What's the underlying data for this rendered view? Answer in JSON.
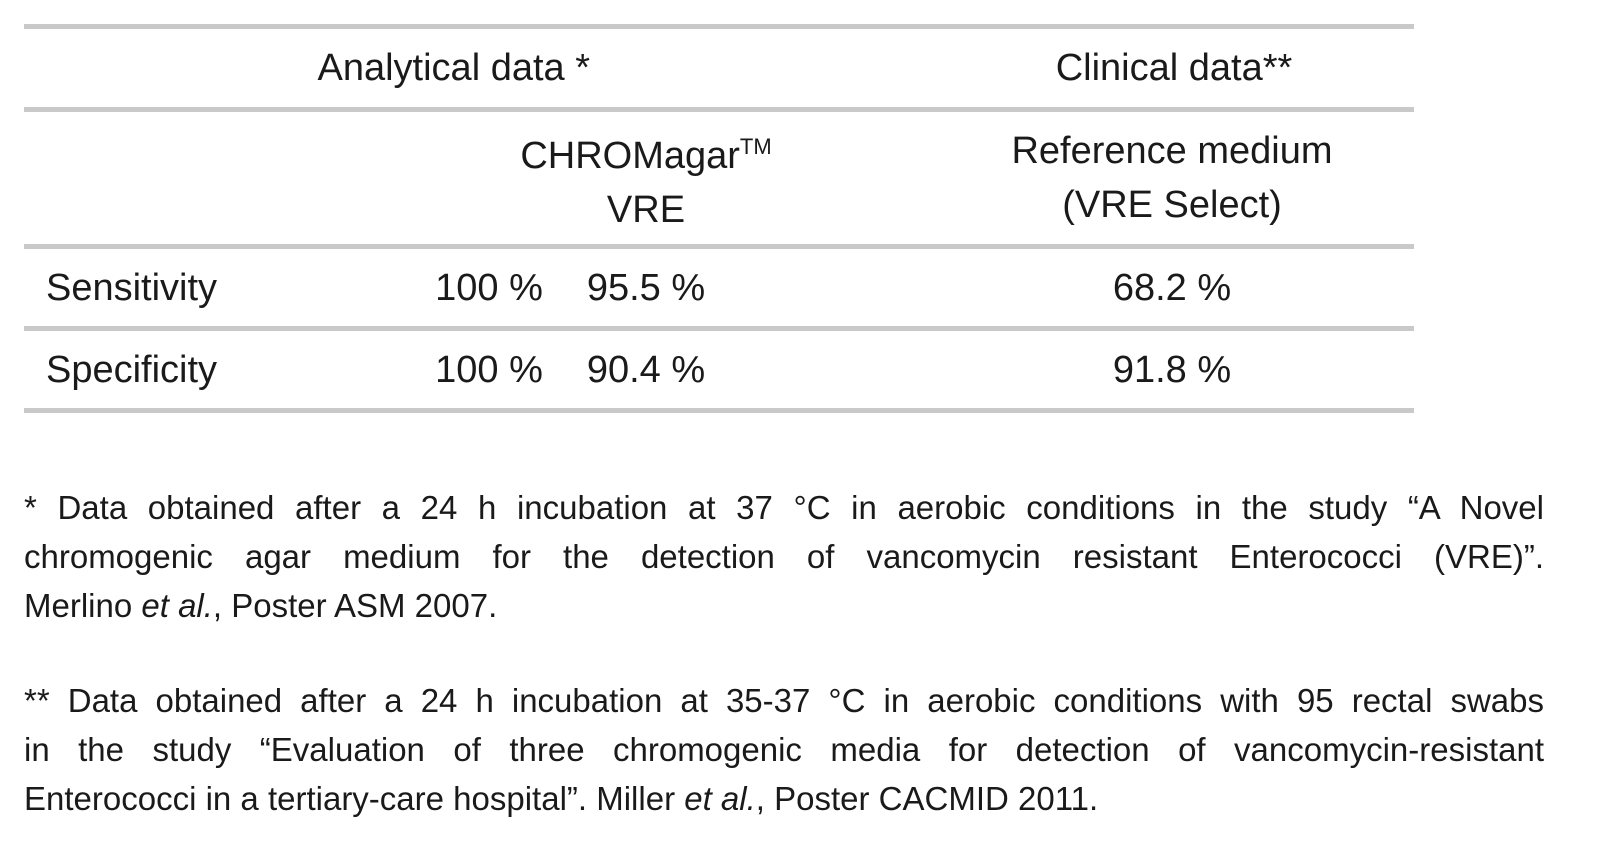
{
  "table": {
    "header_analytical": "Analytical data *",
    "header_clinical": "Clinical data**",
    "sub_chromagar_line1": "CHROMagar",
    "sub_chromagar_tm": "TM",
    "sub_chromagar_line2": "VRE",
    "sub_reference_line1": "Reference medium",
    "sub_reference_line2": "(VRE Select)",
    "rows": [
      {
        "label": "Sensitivity",
        "analytical": "100 %",
        "chromagar": "95.5 %",
        "reference": "68.2 %"
      },
      {
        "label": "Specificity",
        "analytical": "100 %",
        "chromagar": "90.4 %",
        "reference": "91.8 %"
      }
    ]
  },
  "notes": {
    "note1": {
      "line1": "* Data obtained after a 24 h incubation at 37 °C in aerobic conditions in the study “A Novel",
      "line2": "chromogenic agar medium for the detection of vancomycin resistant Enterococci (VRE)”.",
      "line3_pre": "Merlino ",
      "line3_em": "et al.",
      "line3_post": ", Poster ASM 2007."
    },
    "note2": {
      "line1": "** Data obtained after a 24 h incubation at 35-37 °C in aerobic conditions with 95 rectal swabs",
      "line2": "in the study “Evaluation of three chromogenic media for detection of vancomycin-resistant",
      "line3_pre": "Enterococci in a tertiary-care hospital”. Miller ",
      "line3_em": "et al.",
      "line3_post": ", Poster CACMID 2011."
    }
  }
}
